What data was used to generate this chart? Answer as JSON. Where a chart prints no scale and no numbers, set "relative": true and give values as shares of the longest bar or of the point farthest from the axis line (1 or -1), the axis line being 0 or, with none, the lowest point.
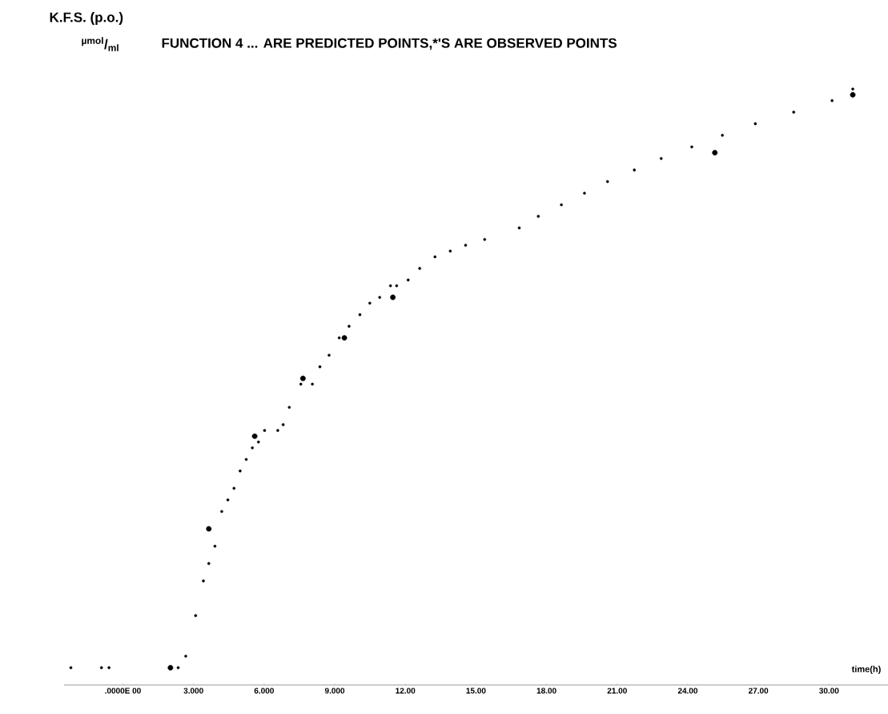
{
  "chart_data": {
    "type": "scatter",
    "title": "FUNCTION 4   ... ARE PREDICTED POINTS,*'S   ARE OBSERVED POINTS",
    "ylabel": "K.F.S. (p.o.)",
    "xlabel": "time(h)",
    "annotations": [
      "$^{µmol}$/$_{ml}$"
    ],
    "relative": true,
    "grid": false,
    "xlim": [
      -2.5,
      32.5
    ],
    "xticks": [
      {
        "value": 0,
        "label": ".0000E 00"
      },
      {
        "value": 3,
        "label": "3.000"
      },
      {
        "value": 6,
        "label": "6.000"
      },
      {
        "value": 9,
        "label": "9.000"
      },
      {
        "value": 12,
        "label": "12.00"
      },
      {
        "value": 15,
        "label": "15.00"
      },
      {
        "value": 18,
        "label": "18.00"
      },
      {
        "value": 21,
        "label": "21.00"
      },
      {
        "value": 24,
        "label": "24.00"
      },
      {
        "value": 27,
        "label": "27.00"
      },
      {
        "value": 30,
        "label": "30.00"
      }
    ],
    "series": [
      {
        "color": "#000000",
        "x": [
          -2.21,
          -0.91,
          -0.59,
          2.35,
          2.67,
          3.09,
          3.42,
          3.65,
          3.91,
          4.2,
          4.46,
          4.72,
          4.98,
          5.24,
          5.5,
          5.76,
          6.02,
          6.58,
          6.81,
          7.07,
          7.56,
          8.05,
          8.37,
          8.76,
          9.19,
          9.61,
          10.07,
          10.49,
          10.91,
          11.37,
          11.63,
          12.12,
          12.61,
          13.26,
          13.91,
          14.56,
          15.37,
          16.84,
          17.65,
          18.63,
          19.61,
          20.59,
          21.73,
          22.87,
          24.17,
          25.47,
          26.87,
          28.5,
          30.13,
          31.01
        ],
        "values": [
          0.0,
          0.0,
          0.0,
          0.0,
          0.02,
          0.09,
          0.15,
          0.18,
          0.21,
          0.27,
          0.29,
          0.31,
          0.34,
          0.36,
          0.38,
          0.39,
          0.41,
          0.41,
          0.42,
          0.45,
          0.49,
          0.49,
          0.52,
          0.54,
          0.57,
          0.59,
          0.61,
          0.63,
          0.64,
          0.66,
          0.66,
          0.67,
          0.69,
          0.71,
          0.72,
          0.73,
          0.74,
          0.76,
          0.78,
          0.8,
          0.82,
          0.84,
          0.86,
          0.88,
          0.9,
          0.92,
          0.94,
          0.96,
          0.98,
          1.0
        ]
      },
      {
        "color": "#000000",
        "x": [
          2.02,
          3.65,
          5.6,
          7.65,
          9.41,
          11.47,
          25.15,
          31.01
        ],
        "values": [
          0.0,
          0.24,
          0.4,
          0.5,
          0.57,
          0.64,
          0.89,
          0.99
        ]
      }
    ]
  }
}
